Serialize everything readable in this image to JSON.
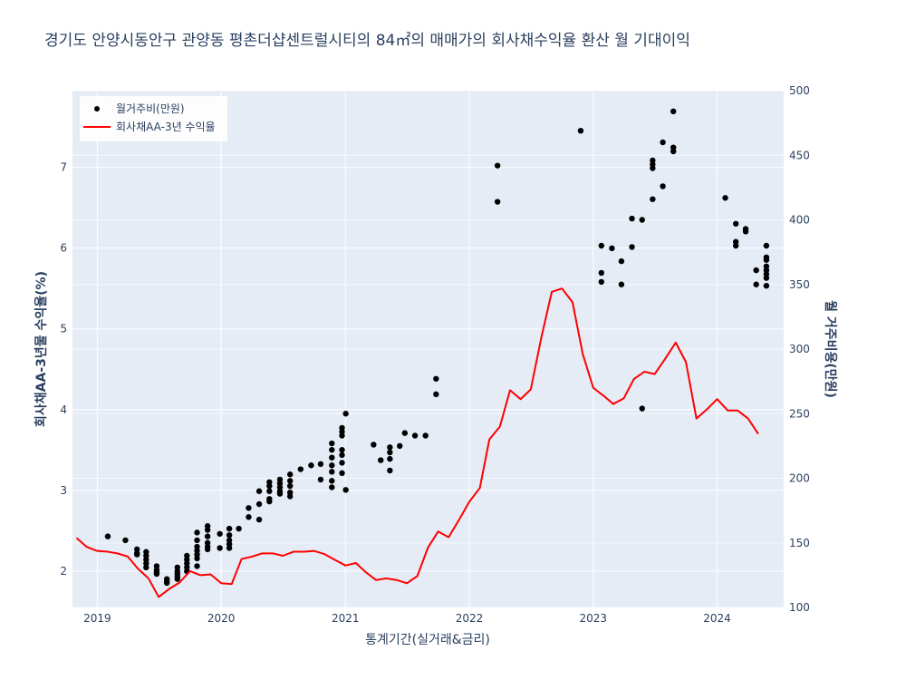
{
  "chart_data": {
    "type": "scatter+line",
    "title": "경기도 안양시동안구 관양동 평촌더샵센트럴시티의 84㎡의 매매가의 회사채수익율 환산 월 기대이익",
    "xlabel": "통계기간(실거래&금리)",
    "ylabel_left": "회사채AA-3년물 수익율(%)",
    "ylabel_right": "월 거주비용(만원)",
    "x_ticks": [
      "2019",
      "2020",
      "2021",
      "2022",
      "2023",
      "2024"
    ],
    "y_left_ticks": [
      2,
      3,
      4,
      5,
      6,
      7
    ],
    "y_right_ticks": [
      100,
      150,
      200,
      250,
      300,
      350,
      400,
      450,
      500
    ],
    "x_range": [
      "2018-10-20",
      "2024-07-15"
    ],
    "y_left_range": [
      1.55,
      7.95
    ],
    "y_right_range": [
      100,
      500
    ],
    "legend": [
      {
        "name": "월거주비(만원)",
        "marker": "dot",
        "color": "#000000"
      },
      {
        "name": "회사채AA-3년 수익율",
        "marker": "line",
        "color": "#ff0000"
      }
    ],
    "legend_position": "top-left",
    "grid": true,
    "bond_yield": {
      "name": "회사채AA-3년 수익율",
      "axis": "left",
      "color": "#ff0000",
      "points": [
        [
          "2018-11-01",
          2.41
        ],
        [
          "2018-12-01",
          2.3
        ],
        [
          "2019-01-01",
          2.25
        ],
        [
          "2019-02-01",
          2.24
        ],
        [
          "2019-03-01",
          2.22
        ],
        [
          "2019-04-01",
          2.18
        ],
        [
          "2019-05-01",
          2.03
        ],
        [
          "2019-06-01",
          1.91
        ],
        [
          "2019-07-01",
          1.68
        ],
        [
          "2019-08-01",
          1.78
        ],
        [
          "2019-09-01",
          1.86
        ],
        [
          "2019-10-01",
          2.0
        ],
        [
          "2019-11-01",
          1.95
        ],
        [
          "2019-12-01",
          1.96
        ],
        [
          "2020-01-01",
          1.85
        ],
        [
          "2020-02-01",
          1.84
        ],
        [
          "2020-03-01",
          2.15
        ],
        [
          "2020-04-01",
          2.18
        ],
        [
          "2020-05-01",
          2.22
        ],
        [
          "2020-06-01",
          2.22
        ],
        [
          "2020-07-01",
          2.19
        ],
        [
          "2020-08-01",
          2.24
        ],
        [
          "2020-09-01",
          2.24
        ],
        [
          "2020-10-01",
          2.25
        ],
        [
          "2020-11-01",
          2.21
        ],
        [
          "2020-12-01",
          2.14
        ],
        [
          "2021-01-01",
          2.07
        ],
        [
          "2021-02-01",
          2.1
        ],
        [
          "2021-03-01",
          1.99
        ],
        [
          "2021-04-01",
          1.89
        ],
        [
          "2021-05-01",
          1.91
        ],
        [
          "2021-06-01",
          1.89
        ],
        [
          "2021-07-01",
          1.85
        ],
        [
          "2021-08-01",
          1.94
        ],
        [
          "2021-09-01",
          2.29
        ],
        [
          "2021-10-01",
          2.49
        ],
        [
          "2021-11-01",
          2.42
        ],
        [
          "2021-12-01",
          2.63
        ],
        [
          "2022-01-01",
          2.86
        ],
        [
          "2022-02-01",
          3.03
        ],
        [
          "2022-03-01",
          3.63
        ],
        [
          "2022-04-01",
          3.79
        ],
        [
          "2022-05-01",
          4.24
        ],
        [
          "2022-06-01",
          4.13
        ],
        [
          "2022-07-01",
          4.25
        ],
        [
          "2022-08-01",
          4.89
        ],
        [
          "2022-09-01",
          5.46
        ],
        [
          "2022-10-01",
          5.5
        ],
        [
          "2022-11-01",
          5.33
        ],
        [
          "2022-12-01",
          4.69
        ],
        [
          "2023-01-01",
          4.27
        ],
        [
          "2023-02-01",
          4.17
        ],
        [
          "2023-03-01",
          4.07
        ],
        [
          "2023-04-01",
          4.14
        ],
        [
          "2023-05-01",
          4.38
        ],
        [
          "2023-06-01",
          4.47
        ],
        [
          "2023-07-01",
          4.44
        ],
        [
          "2023-08-01",
          4.63
        ],
        [
          "2023-09-01",
          4.83
        ],
        [
          "2023-10-01",
          4.59
        ],
        [
          "2023-11-01",
          3.89
        ],
        [
          "2023-12-01",
          4.0
        ],
        [
          "2024-01-01",
          4.13
        ],
        [
          "2024-02-01",
          3.99
        ],
        [
          "2024-03-01",
          3.99
        ],
        [
          "2024-04-01",
          3.89
        ],
        [
          "2024-05-01",
          3.7
        ]
      ]
    },
    "monthly_cost": {
      "name": "월거주비(만원)",
      "axis": "right",
      "color": "#000000",
      "points": [
        [
          "2019-02-01",
          155
        ],
        [
          "2019-03-25",
          152
        ],
        [
          "2019-04-28",
          145
        ],
        [
          "2019-04-28",
          142
        ],
        [
          "2019-04-28",
          141
        ],
        [
          "2019-05-25",
          143
        ],
        [
          "2019-05-25",
          140
        ],
        [
          "2019-05-25",
          137
        ],
        [
          "2019-05-25",
          134
        ],
        [
          "2019-05-25",
          131
        ],
        [
          "2019-06-25",
          132
        ],
        [
          "2019-06-25",
          129
        ],
        [
          "2019-06-25",
          127
        ],
        [
          "2019-06-25",
          126
        ],
        [
          "2019-07-25",
          122
        ],
        [
          "2019-07-25",
          120
        ],
        [
          "2019-07-25",
          119
        ],
        [
          "2019-08-25",
          131
        ],
        [
          "2019-08-25",
          128
        ],
        [
          "2019-08-25",
          126
        ],
        [
          "2019-08-25",
          124
        ],
        [
          "2019-08-25",
          122
        ],
        [
          "2019-09-22",
          140
        ],
        [
          "2019-09-22",
          137
        ],
        [
          "2019-09-22",
          134
        ],
        [
          "2019-09-22",
          131
        ],
        [
          "2019-09-22",
          128
        ],
        [
          "2019-10-22",
          158
        ],
        [
          "2019-10-22",
          152
        ],
        [
          "2019-10-22",
          147
        ],
        [
          "2019-10-22",
          144
        ],
        [
          "2019-10-22",
          141
        ],
        [
          "2019-10-22",
          138
        ],
        [
          "2019-10-22",
          132
        ],
        [
          "2019-11-22",
          163
        ],
        [
          "2019-11-22",
          160
        ],
        [
          "2019-11-22",
          155
        ],
        [
          "2019-11-22",
          150
        ],
        [
          "2019-11-22",
          147
        ],
        [
          "2019-11-22",
          145
        ],
        [
          "2019-12-28",
          157
        ],
        [
          "2019-12-28",
          146
        ],
        [
          "2020-01-25",
          161
        ],
        [
          "2020-01-25",
          156
        ],
        [
          "2020-01-25",
          152
        ],
        [
          "2020-01-25",
          149
        ],
        [
          "2020-01-25",
          146
        ],
        [
          "2020-02-22",
          161
        ],
        [
          "2020-03-22",
          177
        ],
        [
          "2020-03-22",
          170
        ],
        [
          "2020-04-22",
          190
        ],
        [
          "2020-04-22",
          180
        ],
        [
          "2020-04-22",
          168
        ],
        [
          "2020-05-22",
          197
        ],
        [
          "2020-05-22",
          194
        ],
        [
          "2020-05-22",
          190
        ],
        [
          "2020-05-22",
          184
        ],
        [
          "2020-05-22",
          182
        ],
        [
          "2020-06-22",
          199
        ],
        [
          "2020-06-22",
          196
        ],
        [
          "2020-06-22",
          193
        ],
        [
          "2020-06-22",
          190
        ],
        [
          "2020-06-22",
          188
        ],
        [
          "2020-07-22",
          203
        ],
        [
          "2020-07-22",
          198
        ],
        [
          "2020-07-22",
          194
        ],
        [
          "2020-07-22",
          189
        ],
        [
          "2020-07-22",
          186
        ],
        [
          "2020-08-22",
          207
        ],
        [
          "2020-09-22",
          210
        ],
        [
          "2020-10-20",
          199
        ],
        [
          "2020-10-20",
          211
        ],
        [
          "2020-11-22",
          227
        ],
        [
          "2020-11-22",
          222
        ],
        [
          "2020-11-22",
          216
        ],
        [
          "2020-11-22",
          210
        ],
        [
          "2020-11-22",
          205
        ],
        [
          "2020-11-22",
          198
        ],
        [
          "2020-11-22",
          193
        ],
        [
          "2020-12-22",
          239
        ],
        [
          "2020-12-22",
          236
        ],
        [
          "2020-12-22",
          233
        ],
        [
          "2020-12-22",
          222
        ],
        [
          "2020-12-22",
          218
        ],
        [
          "2020-12-22",
          212
        ],
        [
          "2020-12-22",
          204
        ],
        [
          "2021-01-02",
          250
        ],
        [
          "2021-01-02",
          191
        ],
        [
          "2021-03-25",
          226
        ],
        [
          "2021-04-15",
          214
        ],
        [
          "2021-05-12",
          224
        ],
        [
          "2021-05-12",
          220
        ],
        [
          "2021-05-12",
          215
        ],
        [
          "2021-05-12",
          206
        ],
        [
          "2021-06-10",
          225
        ],
        [
          "2021-06-25",
          235
        ],
        [
          "2021-07-25",
          233
        ],
        [
          "2021-08-25",
          233
        ],
        [
          "2021-09-25",
          277
        ],
        [
          "2021-09-25",
          265
        ],
        [
          "2022-03-25",
          442
        ],
        [
          "2022-03-25",
          414
        ],
        [
          "2022-11-25",
          469
        ],
        [
          "2023-01-25",
          380
        ],
        [
          "2023-01-25",
          359
        ],
        [
          "2023-01-25",
          352
        ],
        [
          "2023-02-25",
          378
        ],
        [
          "2023-03-25",
          368
        ],
        [
          "2023-03-25",
          350
        ],
        [
          "2023-04-25",
          379
        ],
        [
          "2023-04-25",
          401
        ],
        [
          "2023-05-25",
          400
        ],
        [
          "2023-05-25",
          254
        ],
        [
          "2023-06-25",
          416
        ],
        [
          "2023-06-25",
          440
        ],
        [
          "2023-06-25",
          443
        ],
        [
          "2023-06-25",
          446
        ],
        [
          "2023-07-25",
          426
        ],
        [
          "2023-07-25",
          460
        ],
        [
          "2023-08-25",
          484
        ],
        [
          "2023-08-25",
          456
        ],
        [
          "2023-08-25",
          453
        ],
        [
          "2024-01-25",
          417
        ],
        [
          "2024-02-25",
          397
        ],
        [
          "2024-02-25",
          383
        ],
        [
          "2024-02-25",
          380
        ],
        [
          "2024-03-25",
          393
        ],
        [
          "2024-03-25",
          391
        ],
        [
          "2024-04-25",
          361
        ],
        [
          "2024-04-25",
          350
        ],
        [
          "2024-05-25",
          380
        ],
        [
          "2024-05-25",
          371
        ],
        [
          "2024-05-25",
          369
        ],
        [
          "2024-05-25",
          364
        ],
        [
          "2024-05-25",
          361
        ],
        [
          "2024-05-25",
          358
        ],
        [
          "2024-05-25",
          355
        ],
        [
          "2024-05-25",
          349
        ]
      ]
    }
  }
}
